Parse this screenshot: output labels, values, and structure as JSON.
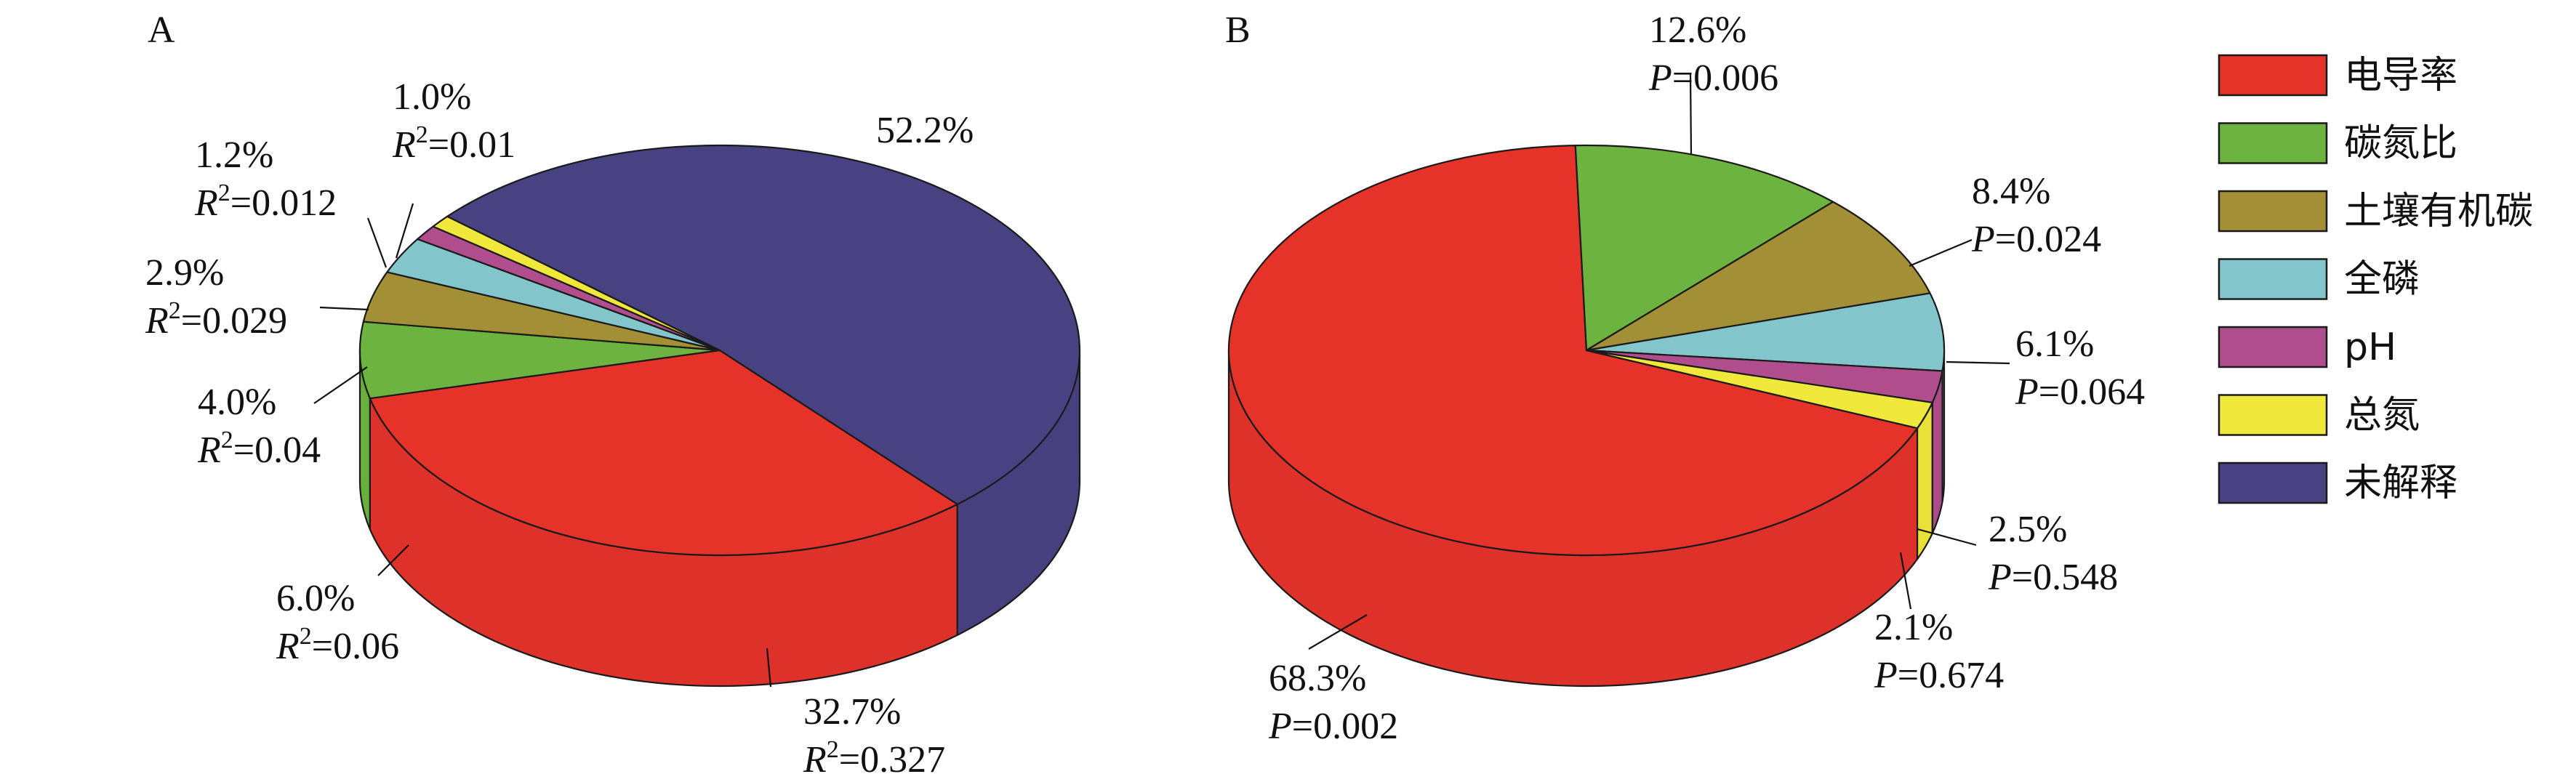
{
  "colors": {
    "电导率": "#E5332A",
    "碳氮比": "#6DB33F",
    "土壤有机碳": "#A38F35",
    "全磷": "#82C6CC",
    "pH": "#B04D8C",
    "总氮": "#F0E83A",
    "未解释": "#484283",
    "outline": "#1a1a1a"
  },
  "legend": {
    "placement": "right",
    "items": [
      {
        "label": "电导率",
        "color": "#E5332A"
      },
      {
        "label": "碳氮比",
        "color": "#6DB33F"
      },
      {
        "label": "土壤有机碳",
        "color": "#A38F35"
      },
      {
        "label": "全磷",
        "color": "#82C6CC"
      },
      {
        "label": "pH",
        "color": "#B04D8C"
      },
      {
        "label": "总氮",
        "color": "#F0E83A"
      },
      {
        "label": "未解释",
        "color": "#484283"
      }
    ]
  },
  "chart_data": [
    {
      "type": "pie",
      "style": "3d",
      "panel_label": "A",
      "stat_prefix": "R",
      "stat_superscript": "2",
      "slices": [
        {
          "name": "电导率",
          "value": 32.7,
          "pct_label": "32.7%",
          "stat": "=0.327"
        },
        {
          "name": "碳氮比",
          "value": 6.0,
          "pct_label": "6.0%",
          "stat": "=0.06"
        },
        {
          "name": "土壤有机碳",
          "value": 4.0,
          "pct_label": "4.0%",
          "stat": "=0.04"
        },
        {
          "name": "全磷",
          "value": 2.9,
          "pct_label": "2.9%",
          "stat": "=0.029"
        },
        {
          "name": "pH",
          "value": 1.2,
          "pct_label": "1.2%",
          "stat": "=0.012"
        },
        {
          "name": "总氮",
          "value": 1.0,
          "pct_label": "1.0%",
          "stat": "=0.01"
        },
        {
          "name": "未解释",
          "value": 52.2,
          "pct_label": "52.2%",
          "stat": ""
        }
      ]
    },
    {
      "type": "pie",
      "style": "3d",
      "panel_label": "B",
      "stat_prefix": "P",
      "stat_superscript": "",
      "slices": [
        {
          "name": "电导率",
          "value": 68.3,
          "pct_label": "68.3%",
          "stat": "=0.002"
        },
        {
          "name": "碳氮比",
          "value": 12.6,
          "pct_label": "12.6%",
          "stat": "=0.006"
        },
        {
          "name": "土壤有机碳",
          "value": 8.4,
          "pct_label": "8.4%",
          "stat": "=0.024"
        },
        {
          "name": "全磷",
          "value": 6.1,
          "pct_label": "6.1%",
          "stat": "=0.064"
        },
        {
          "name": "pH",
          "value": 2.5,
          "pct_label": "2.5%",
          "stat": "=0.548"
        },
        {
          "name": "总氮",
          "value": 2.1,
          "pct_label": "2.1%",
          "stat": "=0.674"
        }
      ]
    }
  ]
}
